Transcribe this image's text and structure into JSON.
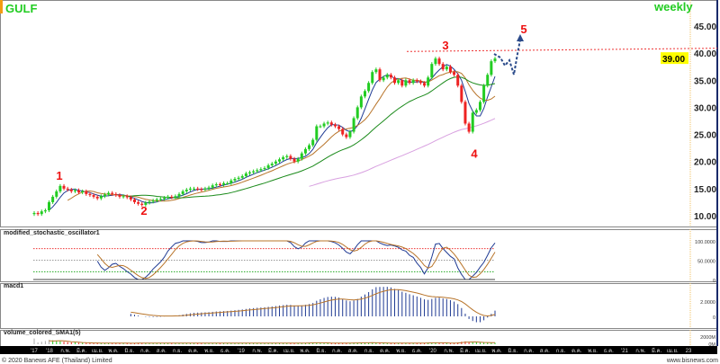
{
  "header": {
    "symbol": "GULF",
    "timeframe": "weekly"
  },
  "footer": {
    "copyright": "© 2020 Banews AFE (Thailand) Limited",
    "website": "www.bisnews.com"
  },
  "colors": {
    "up": "#22cc22",
    "down": "#ee2222",
    "ma_fast": "#1f3a93",
    "ma_mid": "#b8742a",
    "ma_slow": "#1a8a1a",
    "ma_long": "#d8a0e0",
    "title": "#22cc22",
    "annotation": "#ee1111",
    "projection": "#2a4a8a",
    "price_tag": "#ffff00"
  },
  "chart_data": [
    {
      "type": "candlestick",
      "title": "GULF",
      "panel": "price",
      "y_ticks": [
        "45.00",
        "40.00",
        "35.00",
        "30.00",
        "25.00",
        "20.00",
        "15.00",
        "10.00"
      ],
      "ylim": [
        8,
        47
      ],
      "last_price_label": "39.00",
      "close": [
        10.5,
        10.3,
        10.8,
        11,
        12.5,
        13.5,
        14.5,
        15.5,
        15,
        14.8,
        14.5,
        14.7,
        14.3,
        14.5,
        14,
        13.8,
        13.5,
        13.2,
        13.6,
        13.9,
        14.2,
        14,
        13.8,
        13.5,
        13.6,
        13.4,
        13,
        12.5,
        12.2,
        12,
        12.4,
        12.6,
        12.8,
        13,
        13.1,
        13.3,
        13.5,
        13.4,
        13.6,
        14,
        14.5,
        14.8,
        15,
        15,
        14.9,
        14.8,
        15,
        15.2,
        15.6,
        15.8,
        15.7,
        16,
        16,
        16.5,
        16.8,
        17,
        17.3,
        17.8,
        18,
        18.2,
        18.4,
        18.6,
        18.8,
        19.3,
        19.6,
        20,
        20.4,
        20.8,
        21,
        20.5,
        20,
        20.5,
        21.5,
        22.3,
        23,
        24,
        26.5,
        26.5,
        27,
        27.2,
        26.8,
        26.5,
        26,
        25,
        24.5,
        25.5,
        28,
        30,
        32,
        33,
        34.5,
        36.5,
        37,
        35,
        35.5,
        36,
        35.5,
        34.5,
        35,
        34,
        35,
        34.5,
        35,
        34.8,
        34.5,
        34,
        35.5,
        38,
        39,
        38,
        37,
        37.5,
        36.5,
        36,
        34,
        31,
        27,
        25.5,
        29,
        29.5,
        31,
        34,
        36,
        38.5,
        39
      ],
      "moving_average_periods": [
        5,
        10,
        26,
        75
      ],
      "resistance_level": 40.3,
      "wave_labels": [
        {
          "label": "1",
          "price": 17.5
        },
        {
          "label": "2",
          "price": 11.0
        },
        {
          "label": "3",
          "price": 41.5
        },
        {
          "label": "4",
          "price": 21.5
        },
        {
          "label": "5",
          "price": 44.5
        }
      ]
    },
    {
      "type": "line",
      "title": "modified_stochastic_oscillator1",
      "y_ticks": [
        "100.0000",
        "50.0000",
        "0"
      ],
      "ylim": [
        0,
        100
      ],
      "levels": [
        80,
        50,
        20
      ]
    },
    {
      "type": "bar",
      "title": "macd1",
      "y_ticks": [
        "2.0000",
        "0"
      ]
    },
    {
      "type": "bar",
      "title": "volume_colored_SMA1(5)",
      "y_ticks": [
        "2000M",
        "0M"
      ],
      "volume_m": [
        1600,
        500,
        700,
        900,
        1200,
        1100,
        900,
        800,
        700,
        600,
        500,
        500,
        400,
        400,
        350,
        350,
        300,
        300,
        300,
        300,
        350,
        300,
        300,
        300,
        300,
        250,
        250,
        300,
        350,
        300,
        300,
        300,
        300,
        300,
        300,
        300,
        300,
        300,
        300,
        350,
        300,
        300,
        300,
        300,
        300,
        300,
        300,
        300,
        300,
        300,
        300,
        300,
        300,
        300,
        300,
        350,
        300,
        300,
        300,
        300,
        300,
        300,
        300,
        300,
        300,
        300,
        350,
        300,
        300,
        300,
        300,
        300,
        350,
        350,
        400,
        500,
        400,
        350,
        300,
        300,
        300,
        300,
        350,
        300,
        300,
        350,
        400,
        450,
        400,
        400,
        400,
        450,
        400,
        350,
        300,
        300,
        300,
        300,
        300,
        300,
        300,
        300,
        300,
        300,
        300,
        350,
        450,
        500,
        400,
        350,
        300,
        300,
        300,
        400,
        500,
        700,
        800,
        600,
        500,
        500,
        450,
        450,
        450,
        400,
        400
      ]
    }
  ],
  "x_axis": {
    "labels": [
      "'17",
      "'18",
      "ก.พ.",
      "มี.ค.",
      "เม.ย.",
      "พ.ค.",
      "มิ.ย.",
      "ก.ค.",
      "ส.ค.",
      "ก.ย.",
      "ต.ค.",
      "พ.ย.",
      "ธ.ค.",
      "'19",
      "ก.พ.",
      "มี.ค.",
      "เม.ย.",
      "พ.ค.",
      "มิ.ย.",
      "ก.ค.",
      "ส.ค.",
      "ก.ย.",
      "ต.ค.",
      "พ.ย.",
      "ธ.ค.",
      "'20",
      "ก.พ.",
      "มี.ค.",
      "เม.ย.",
      "พ.ค.",
      "มิ.ย.",
      "ก.ค.",
      "ส.ค.",
      "ก.ย.",
      "ต.ค.",
      "พ.ย.",
      "ธ.ค.",
      "'21",
      "ก.พ.",
      "มี.ค.",
      "เม.ย.",
      "23"
    ]
  }
}
